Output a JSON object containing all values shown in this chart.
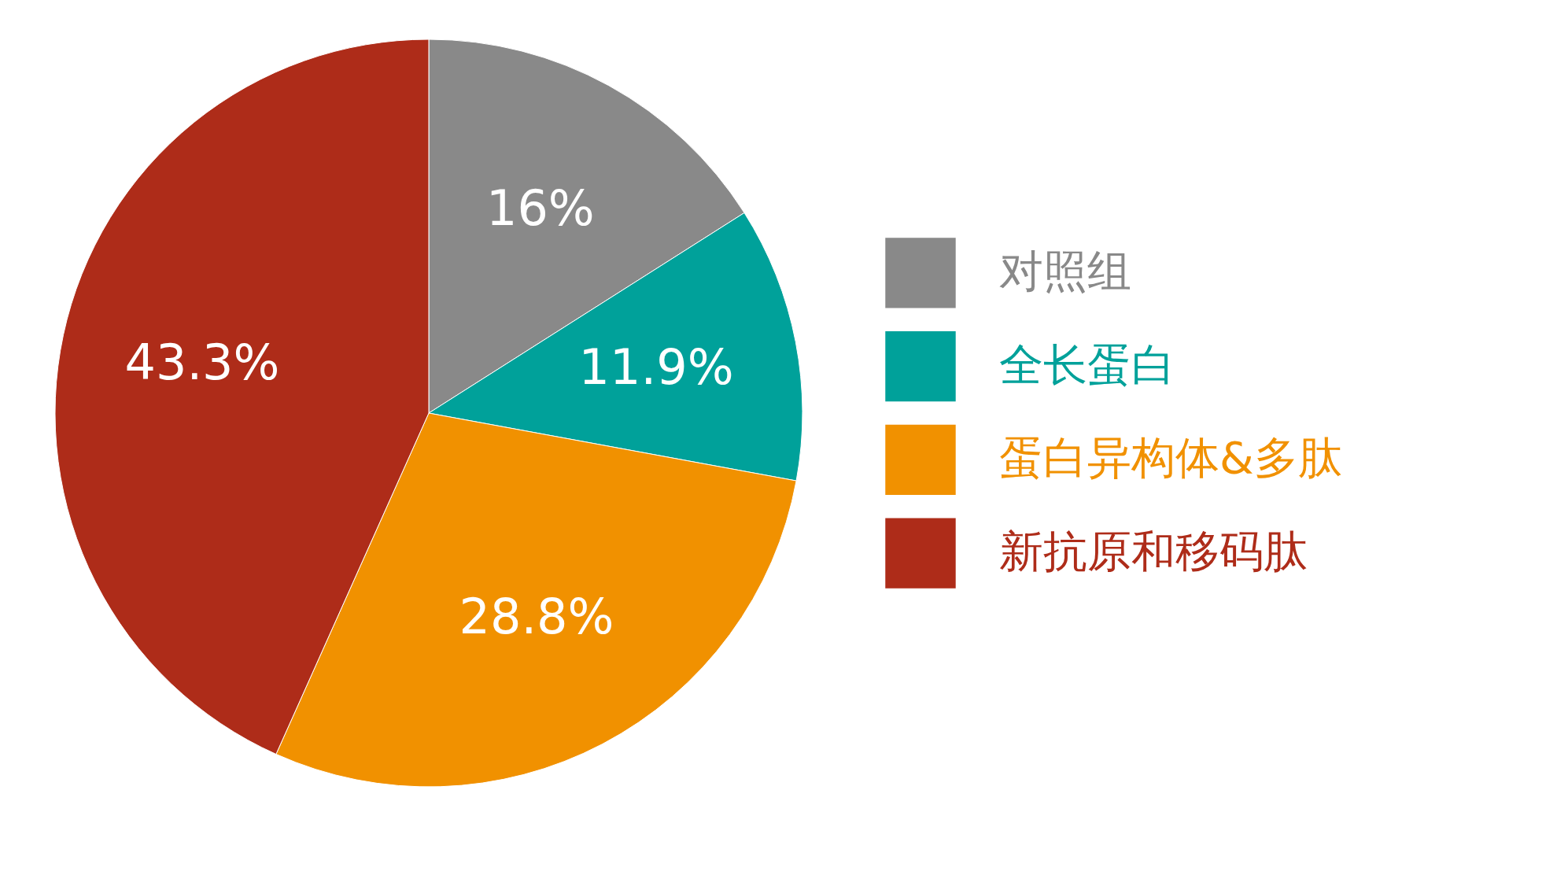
{
  "chart_data": {
    "type": "pie",
    "categories": [
      "对照组",
      "全长蛋白",
      "蛋白异构体&多肽",
      "新抗原和移码肽"
    ],
    "values": [
      16,
      11.9,
      28.8,
      43.3
    ],
    "colors": [
      "#898989",
      "#00a19a",
      "#f19100",
      "#ae2c19"
    ],
    "value_labels": [
      "16%",
      "11.9%",
      "28.8%",
      "43.3%"
    ],
    "legend": "right"
  }
}
